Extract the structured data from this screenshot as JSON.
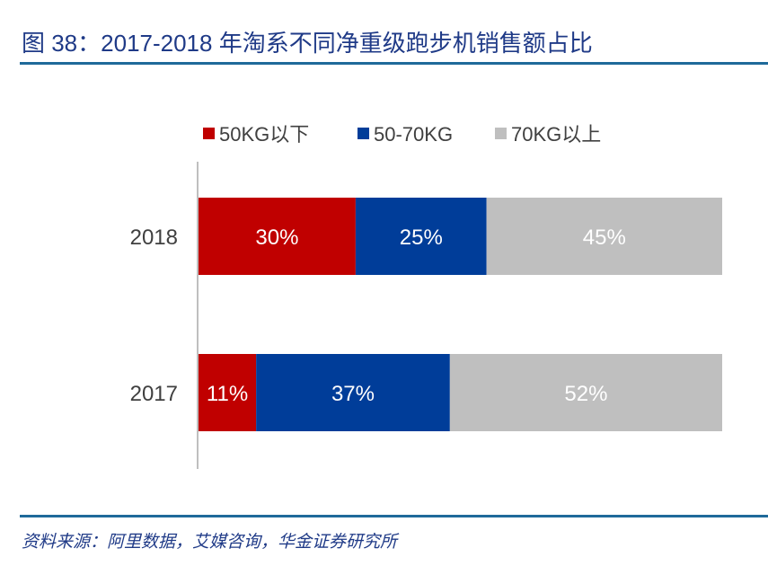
{
  "title": "图 38：2017-2018 年淘系不同净重级跑步机销售额占比",
  "source": "资料来源：阿里数据，艾媒咨询，华金证券研究所",
  "chart_data": {
    "type": "bar",
    "orientation": "horizontal",
    "stacked": true,
    "percent": true,
    "categories": [
      "2018",
      "2017"
    ],
    "series": [
      {
        "name": "50KG以下",
        "values": [
          30,
          11
        ],
        "labels": [
          "30%",
          "11%"
        ],
        "color": "#C00000"
      },
      {
        "name": "50-70KG",
        "values": [
          25,
          37
        ],
        "labels": [
          "25%",
          "37%"
        ],
        "color": "#003D99"
      },
      {
        "name": "70KG以上",
        "values": [
          45,
          52
        ],
        "labels": [
          "45%",
          "52%"
        ],
        "color": "#BFBFBF"
      }
    ],
    "xlim": [
      0,
      100
    ],
    "grid": false,
    "legend": "top"
  }
}
